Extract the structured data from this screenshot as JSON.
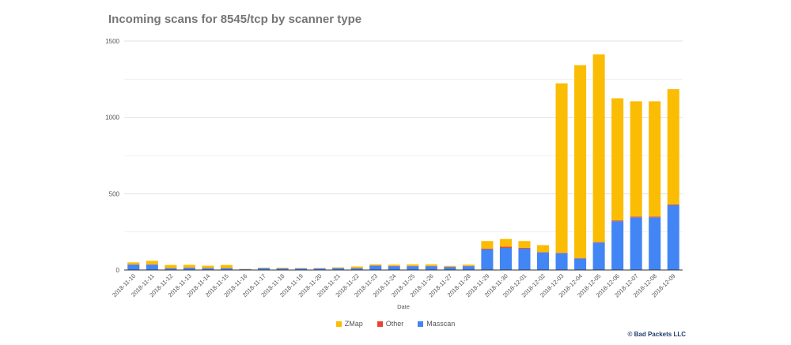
{
  "title": "Incoming scans for 8545/tcp by scanner type",
  "copyright": "© Bad Packets LLC",
  "chart_data": {
    "type": "bar",
    "stacked": true,
    "title": "Incoming scans for 8545/tcp by scanner type",
    "xlabel": "Date",
    "ylabel": "",
    "ylim": [
      0,
      1500
    ],
    "yticks": [
      0,
      500,
      1000,
      1500
    ],
    "grid": true,
    "legend_position": "bottom",
    "categories": [
      "2018-11-10",
      "2018-11-11",
      "2018-11-12",
      "2018-11-13",
      "2018-11-14",
      "2018-11-15",
      "2018-11-16",
      "2018-11-17",
      "2018-11-18",
      "2018-11-19",
      "2018-11-20",
      "2018-11-21",
      "2018-11-22",
      "2018-11-23",
      "2018-11-24",
      "2018-11-25",
      "2018-11-26",
      "2018-11-27",
      "2018-11-28",
      "2018-11-29",
      "2018-11-30",
      "2018-12-01",
      "2018-12-02",
      "2018-12-03",
      "2018-12-04",
      "2018-12-05",
      "2018-12-06",
      "2018-12-07",
      "2018-12-08",
      "2018-12-09"
    ],
    "series": [
      {
        "name": "Masscan",
        "color": "#4285f4",
        "values": [
          35,
          35,
          12,
          15,
          12,
          12,
          5,
          12,
          10,
          10,
          10,
          12,
          12,
          28,
          25,
          25,
          25,
          20,
          25,
          135,
          145,
          140,
          115,
          110,
          75,
          180,
          320,
          345,
          345,
          425
        ]
      },
      {
        "name": "Other",
        "color": "#ea4335",
        "values": [
          2,
          2,
          1,
          1,
          1,
          1,
          0,
          1,
          1,
          1,
          1,
          1,
          1,
          2,
          2,
          2,
          2,
          1,
          2,
          5,
          8,
          5,
          3,
          3,
          2,
          3,
          5,
          5,
          5,
          5
        ]
      },
      {
        "name": "ZMap",
        "color": "#fbbc04",
        "values": [
          13,
          23,
          20,
          18,
          15,
          20,
          2,
          2,
          4,
          2,
          2,
          4,
          10,
          7,
          8,
          10,
          10,
          6,
          8,
          50,
          50,
          45,
          45,
          1110,
          1265,
          1230,
          800,
          755,
          755,
          755
        ]
      }
    ]
  }
}
